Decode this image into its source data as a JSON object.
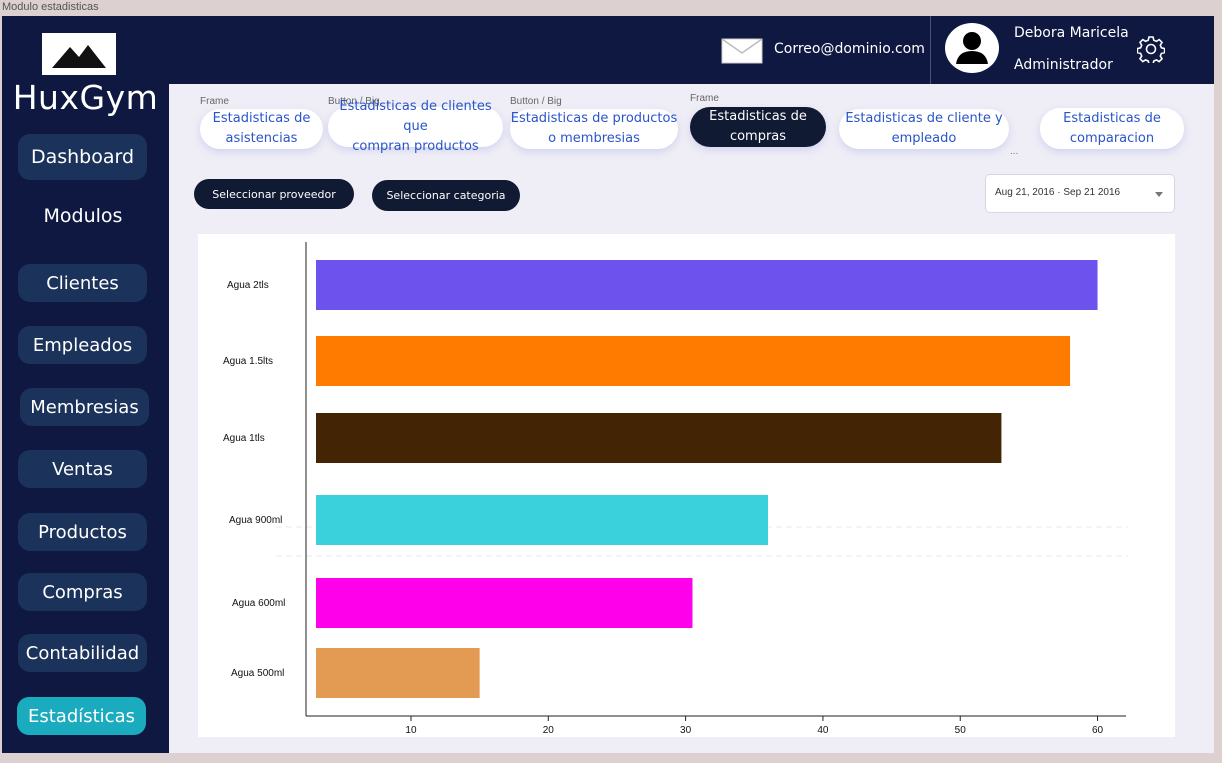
{
  "frame_title": "Modulo estadisticas",
  "sidebar": {
    "brand": "HuxGym",
    "dashboard": "Dashboard",
    "modulos": "Modulos",
    "items": [
      "Clientes",
      "Empleados",
      "Membresias",
      "Ventas",
      "Productos",
      "Compras",
      "Contabilidad",
      "Estadísticas"
    ],
    "active": "Estadísticas"
  },
  "header": {
    "email": "Correo@dominio.com",
    "user_name": "Debora Maricela",
    "user_role": "Administrador"
  },
  "tab_labels": {
    "frame1": "Frame",
    "button1": "Button / Big",
    "button2": "Button / Big",
    "frame2": "Frame"
  },
  "tabs": [
    {
      "line1": "Estadisticas de",
      "line2": "asistencias"
    },
    {
      "line1": "Estadisticas de clientes que",
      "line2": "compran productos"
    },
    {
      "line1": "Estadisticas de productos",
      "line2": "o membresias"
    },
    {
      "line1": "Estadisticas de",
      "line2": "compras"
    },
    {
      "line1": "Estadisticas de cliente y",
      "line2": "empleado"
    },
    {
      "line1": "Estadisticas de",
      "line2": "comparacion"
    }
  ],
  "tabs_overflow": "...",
  "filters": {
    "supplier": "Seleccionar proveedor",
    "category": "Seleccionar categoria",
    "date_range": "Aug 21, 2016 · Sep 21 2016"
  },
  "colors": {
    "sidebar_bg": "#0e1840",
    "active_item": "#1aabbf",
    "accent_text": "#2a55c9"
  },
  "chart_data": {
    "type": "bar",
    "orientation": "horizontal",
    "categories": [
      "Agua 2tls",
      "Agua 1.5lts",
      "Agua 1tls",
      "Agua 900ml",
      "Agua 600ml",
      "Agua 500ml"
    ],
    "values": [
      60,
      58,
      53,
      36,
      30.5,
      15
    ],
    "colors": [
      "#6e52ee",
      "#ff7b00",
      "#432405",
      "#3ad0dc",
      "#ff00ea",
      "#e39a52"
    ],
    "x_ticks": [
      10,
      20,
      30,
      40,
      50,
      60
    ],
    "xlim": [
      2.5,
      62
    ]
  }
}
